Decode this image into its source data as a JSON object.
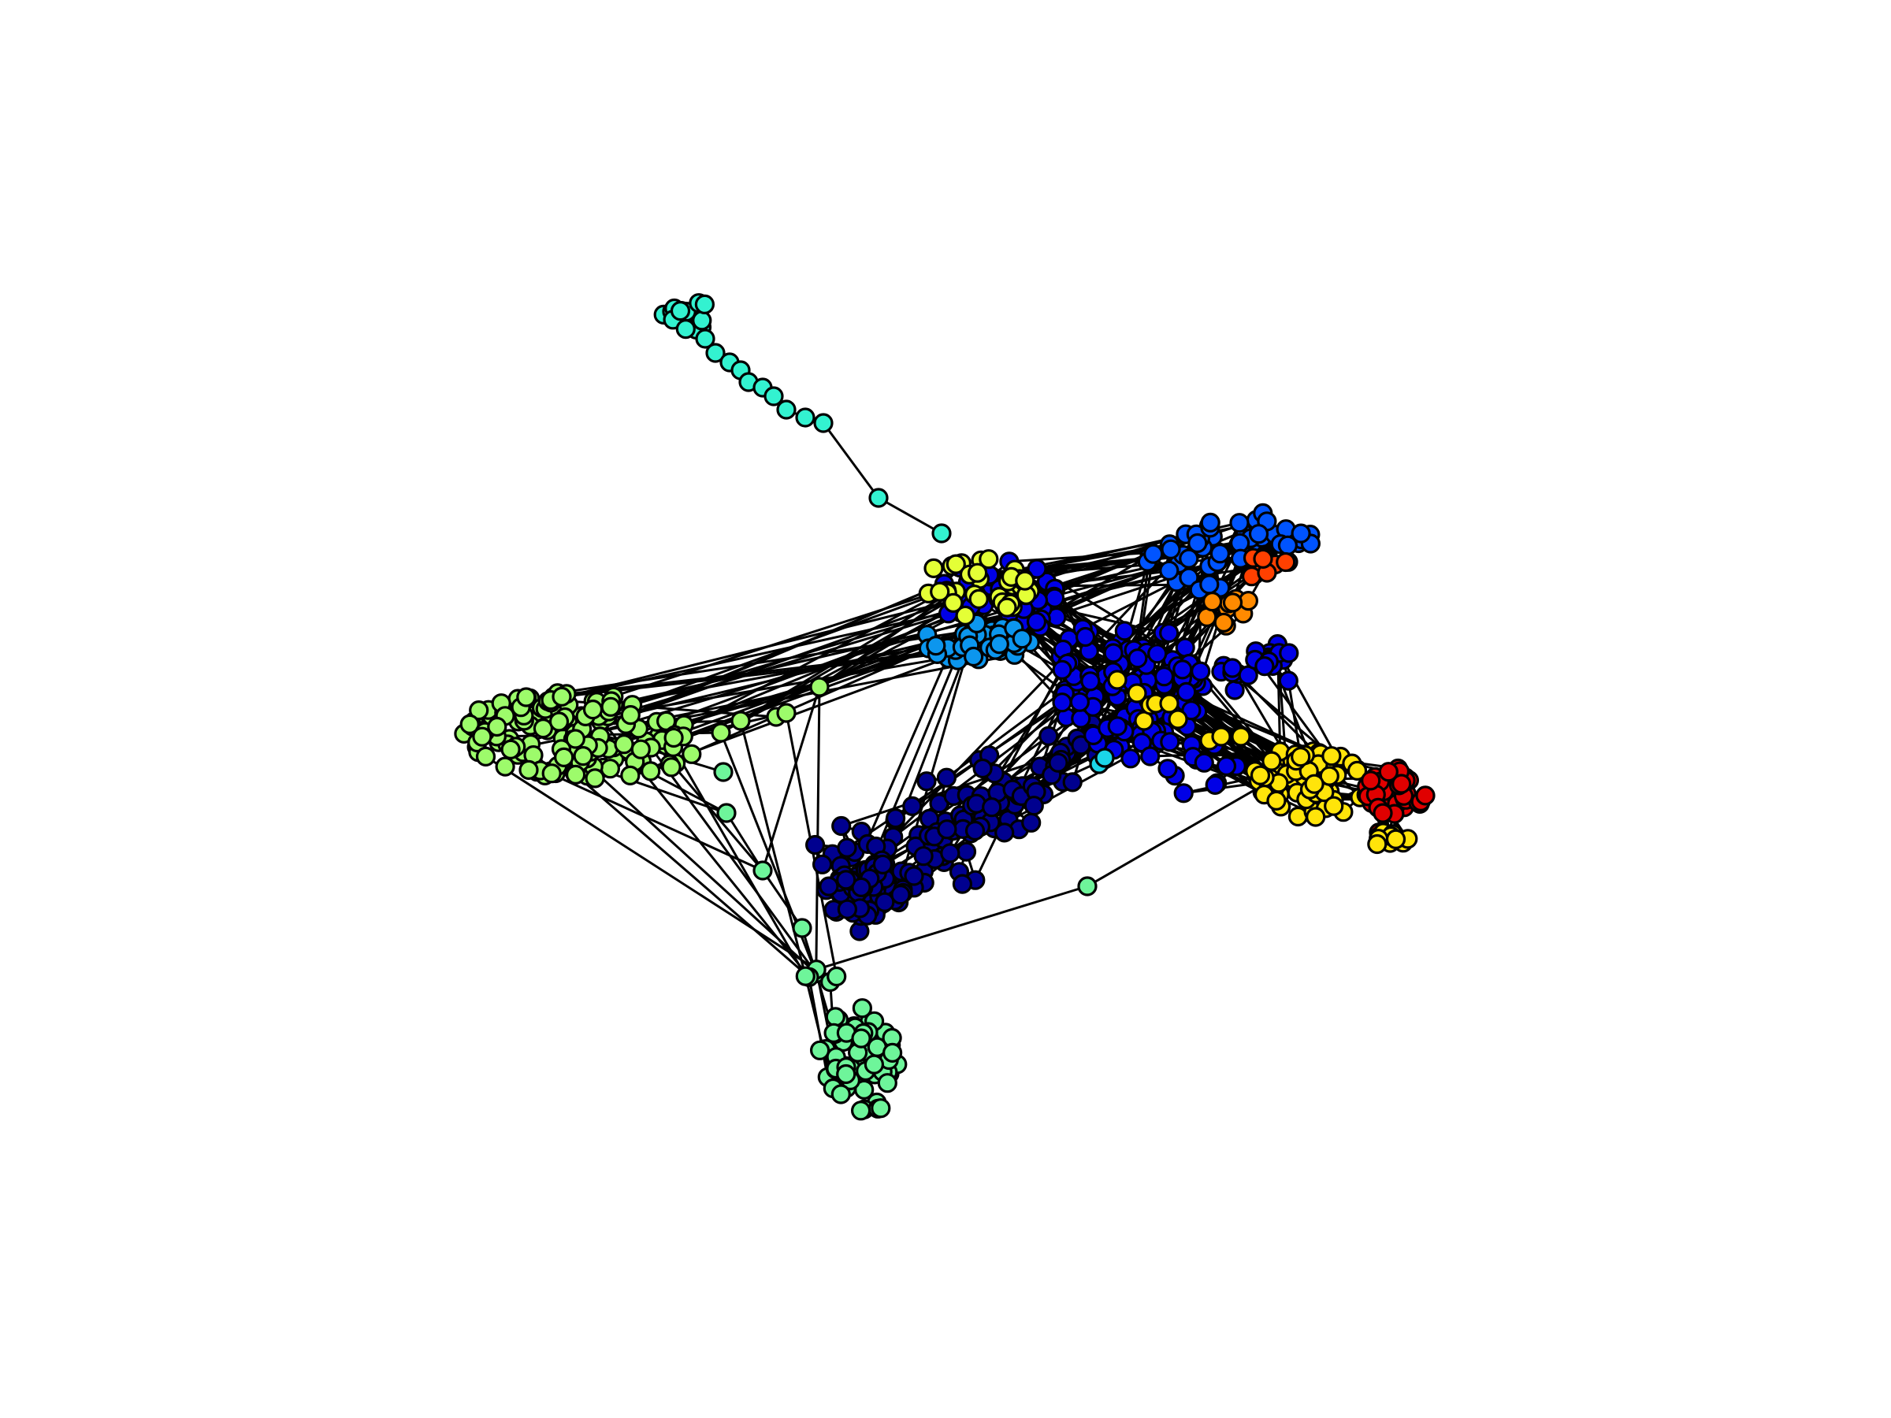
{
  "diagram": {
    "type": "network-graph",
    "layout": "force-directed",
    "background": "#ffffff",
    "edge_color": "#000000",
    "node_outline": "#000000",
    "colormap": "jet",
    "communities": [
      {
        "id": "teal-tail",
        "color": "#33f2d0"
      },
      {
        "id": "light-green",
        "color": "#9dfb6b"
      },
      {
        "id": "mint",
        "color": "#6ef59a"
      },
      {
        "id": "navy",
        "color": "#00008f"
      },
      {
        "id": "blue",
        "color": "#0000e6"
      },
      {
        "id": "mid-blue",
        "color": "#0054ff"
      },
      {
        "id": "sky-blue",
        "color": "#0c96ee"
      },
      {
        "id": "yellow-green",
        "color": "#e4ff36"
      },
      {
        "id": "yellow",
        "color": "#ffe40a"
      },
      {
        "id": "orange",
        "color": "#ff8a00"
      },
      {
        "id": "red-orange",
        "color": "#ff4000"
      },
      {
        "id": "red",
        "color": "#e00000"
      },
      {
        "id": "dark-red",
        "color": "#8a0000"
      },
      {
        "id": "cyan",
        "color": "#1bd6e8"
      }
    ]
  }
}
